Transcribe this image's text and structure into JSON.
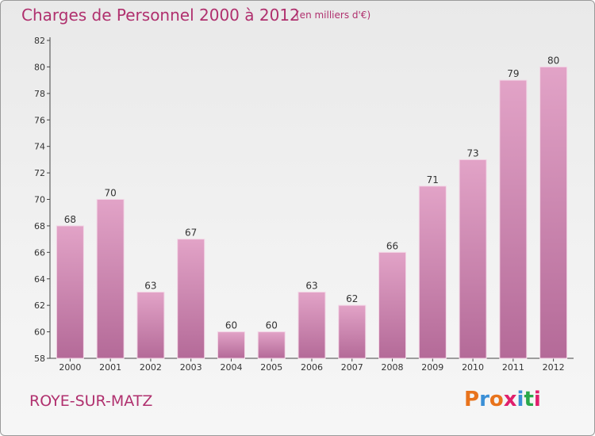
{
  "header": {
    "title": "Charges de Personnel 2000 à 2012",
    "subtitle": "(en milliers d'€)"
  },
  "footer": {
    "commune": "ROYE-SUR-MATZ",
    "logo_text": "Proxiti",
    "logo_colors": [
      "#e8731c",
      "#3a8fd6",
      "#e8731c",
      "#e01f6c",
      "#3a8fd6",
      "#2aa84a",
      "#e01f6c"
    ]
  },
  "colors": {
    "bar_top": "#e2a3c7",
    "bar_bottom": "#b46a98",
    "accent": "#b0306e"
  },
  "chart_data": {
    "type": "bar",
    "categories": [
      "2000",
      "2001",
      "2002",
      "2003",
      "2004",
      "2005",
      "2006",
      "2007",
      "2008",
      "2009",
      "2010",
      "2011",
      "2012"
    ],
    "values": [
      68,
      70,
      63,
      67,
      60,
      60,
      63,
      62,
      66,
      71,
      73,
      79,
      80
    ],
    "ylim": [
      58,
      82
    ],
    "yticks": [
      58,
      60,
      62,
      64,
      66,
      68,
      70,
      72,
      74,
      76,
      78,
      80,
      82
    ],
    "grid": false,
    "xlabel": "",
    "ylabel": ""
  }
}
